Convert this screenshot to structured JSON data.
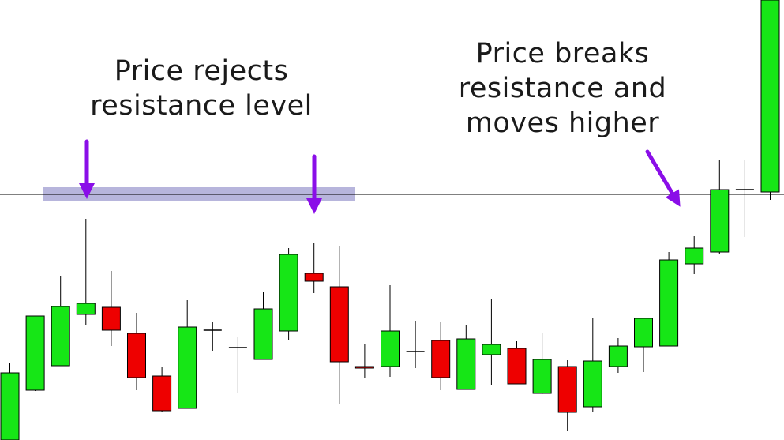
{
  "chart_data": {
    "type": "candlestick",
    "title": "",
    "xlabel": "",
    "ylabel": "",
    "axes_visible": false,
    "grid": false,
    "ylim": [
      0,
      557
    ],
    "resistance_level": 311,
    "resistance_zone": [
      303,
      320
    ],
    "colors": {
      "bullish": "#16e616",
      "bearish": "#ee0000",
      "outline": "#000000",
      "zone": "#aaa8d6",
      "arrow": "#8a0ee8",
      "line": "#000000"
    },
    "candles": [
      {
        "open": 0,
        "high": 97,
        "low": 0,
        "close": 85
      },
      {
        "open": 63,
        "high": 157,
        "low": 62,
        "close": 157
      },
      {
        "open": 94,
        "high": 207,
        "low": 94,
        "close": 169
      },
      {
        "open": 159,
        "high": 280,
        "low": 146,
        "close": 173
      },
      {
        "open": 168,
        "high": 214,
        "low": 119,
        "close": 139
      },
      {
        "open": 135,
        "high": 161,
        "low": 63,
        "close": 79
      },
      {
        "open": 81,
        "high": 92,
        "low": 35,
        "close": 37
      },
      {
        "open": 40,
        "high": 177,
        "low": 40,
        "close": 143
      },
      {
        "open": 139,
        "high": 149,
        "low": 113,
        "close": 139
      },
      {
        "open": 117,
        "high": 130,
        "low": 59,
        "close": 117
      },
      {
        "open": 102,
        "high": 187,
        "low": 102,
        "close": 166
      },
      {
        "open": 138,
        "high": 243,
        "low": 126,
        "close": 235
      },
      {
        "open": 211,
        "high": 249,
        "low": 186,
        "close": 201
      },
      {
        "open": 194,
        "high": 245,
        "low": 45,
        "close": 99
      },
      {
        "open": 93,
        "high": 121,
        "low": 79,
        "close": 91
      },
      {
        "open": 93,
        "high": 196,
        "low": 80,
        "close": 138
      },
      {
        "open": 112,
        "high": 151,
        "low": 91,
        "close": 112
      },
      {
        "open": 126,
        "high": 150,
        "low": 63,
        "close": 79
      },
      {
        "open": 64,
        "high": 145,
        "low": 64,
        "close": 128
      },
      {
        "open": 108,
        "high": 179,
        "low": 70,
        "close": 121
      },
      {
        "open": 116,
        "high": 125,
        "low": 73,
        "close": 71
      },
      {
        "open": 59,
        "high": 136,
        "low": 58,
        "close": 102
      },
      {
        "open": 93,
        "high": 101,
        "low": 11,
        "close": 35
      },
      {
        "open": 42,
        "high": 155,
        "low": 36,
        "close": 100
      },
      {
        "open": 93,
        "high": 129,
        "low": 85,
        "close": 119
      },
      {
        "open": 118,
        "high": 153,
        "low": 86,
        "close": 154
      },
      {
        "open": 119,
        "high": 238,
        "low": 119,
        "close": 228
      },
      {
        "open": 223,
        "high": 258,
        "low": 210,
        "close": 243
      },
      {
        "open": 238,
        "high": 354,
        "low": 236,
        "close": 317
      },
      {
        "open": 317,
        "high": 354,
        "low": 257,
        "close": 317
      },
      {
        "open": 314,
        "high": 557,
        "low": 304,
        "close": 557
      }
    ],
    "annotations": [
      {
        "id": "left",
        "lines": [
          "Price rejects",
          "resistance level"
        ]
      },
      {
        "id": "right",
        "lines": [
          "Price breaks",
          "resistance and",
          "moves higher"
        ]
      }
    ]
  }
}
